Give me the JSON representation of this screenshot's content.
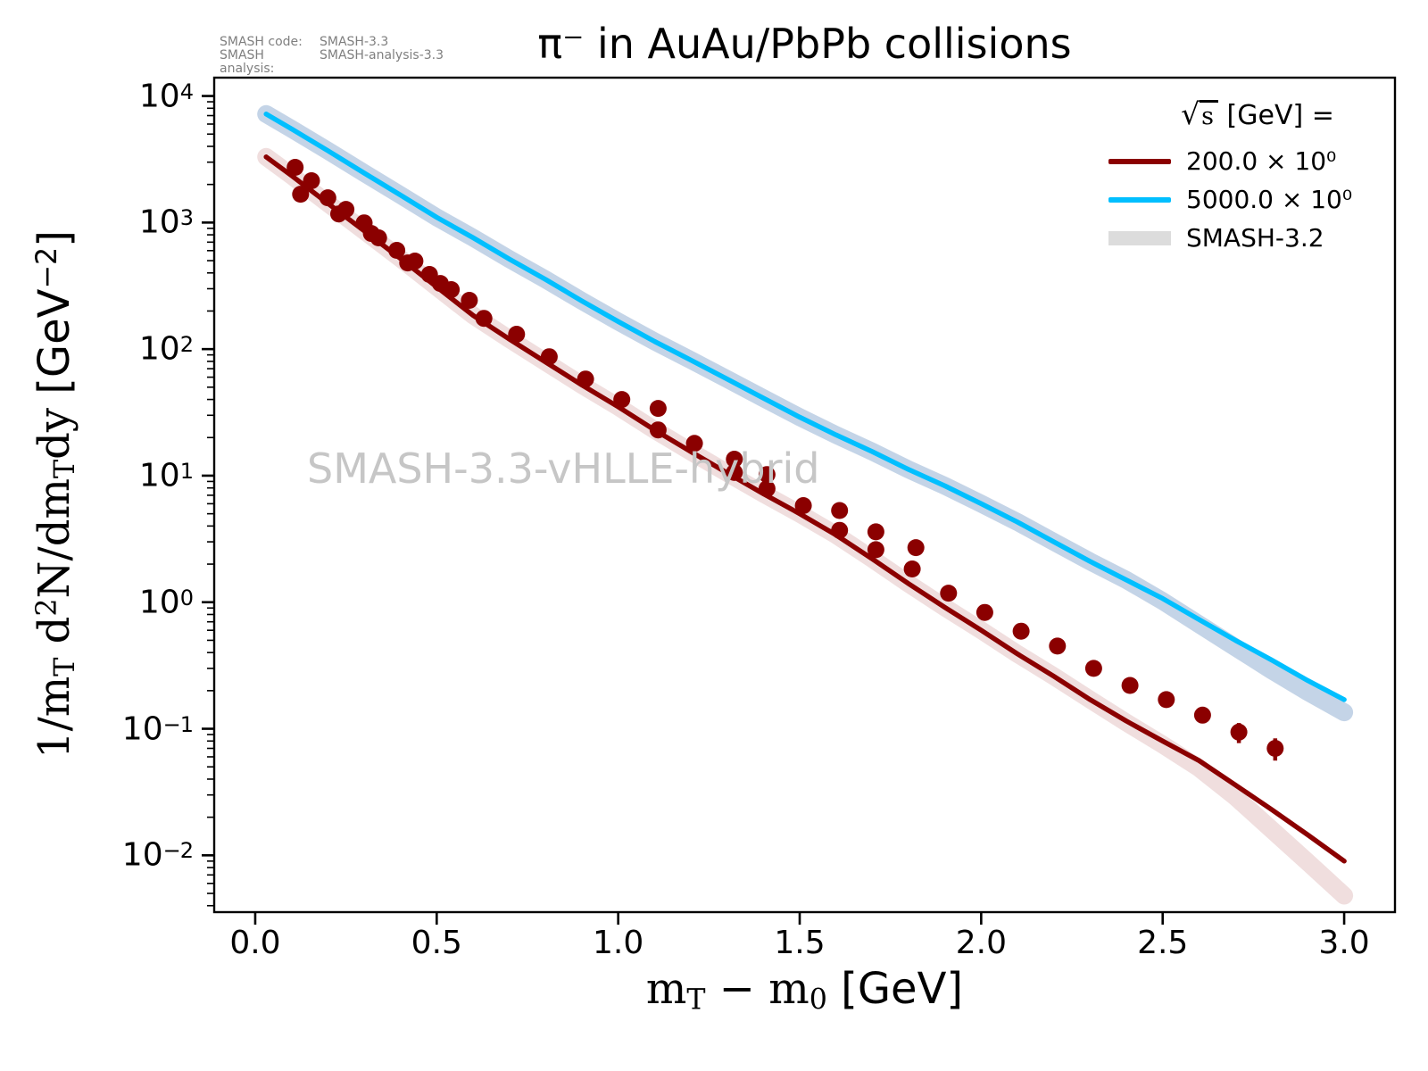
{
  "meta": {
    "line1": {
      "label": "SMASH code:",
      "value": "SMASH-3.3"
    },
    "line2": {
      "label": "SMASH analysis:",
      "value": "SMASH-analysis-3.3"
    }
  },
  "title": "π⁻ in AuAu/PbPb collisions",
  "watermark": "SMASH-3.3-vHLLE-hybrid",
  "legend": {
    "title": {
      "sqrt": "√",
      "arg": "s",
      "rest": " [GeV] ="
    },
    "entries": [
      {
        "label": "200.0 × 10⁰",
        "color": "#8b0000",
        "kind": "line"
      },
      {
        "label": "5000.0 × 10⁰",
        "color": "#00bfff",
        "kind": "line"
      },
      {
        "label": "SMASH-3.2",
        "color": "#dcdcdc",
        "kind": "band"
      }
    ]
  },
  "axes": {
    "xlabel_segments": [
      {
        "t": "m",
        "f": "serif"
      },
      {
        "t": "T",
        "f": "serifsub"
      },
      {
        "t": " − m",
        "f": "serif"
      },
      {
        "t": "0",
        "f": "serifsub"
      },
      {
        "t": " [GeV]",
        "f": "sans"
      }
    ],
    "ylabel_segments": [
      {
        "t": "1/m",
        "f": "serif"
      },
      {
        "t": "T",
        "f": "serifsub"
      },
      {
        "t": " d",
        "f": "serif"
      },
      {
        "t": "2",
        "f": "serifsup"
      },
      {
        "t": "N/dm",
        "f": "serif"
      },
      {
        "t": "T",
        "f": "serifsub"
      },
      {
        "t": "dy ",
        "f": "serif"
      },
      {
        "t": "[GeV",
        "f": "sans"
      },
      {
        "t": "−2",
        "f": "sanssup"
      },
      {
        "t": "]",
        "f": "sans"
      }
    ],
    "xticks": [
      {
        "v": 0.0,
        "label": "0.0"
      },
      {
        "v": 0.5,
        "label": "0.5"
      },
      {
        "v": 1.0,
        "label": "1.0"
      },
      {
        "v": 1.5,
        "label": "1.5"
      },
      {
        "v": 2.0,
        "label": "2.0"
      },
      {
        "v": 2.5,
        "label": "2.5"
      },
      {
        "v": 3.0,
        "label": "3.0"
      }
    ],
    "yticks": [
      {
        "e": 4,
        "exp": "4"
      },
      {
        "e": 3,
        "exp": "3"
      },
      {
        "e": 2,
        "exp": "2"
      },
      {
        "e": 1,
        "exp": "1"
      },
      {
        "e": 0,
        "exp": "0"
      },
      {
        "e": -1,
        "exp": "−1"
      },
      {
        "e": -2,
        "exp": "−2"
      }
    ]
  },
  "chart_data": {
    "type": "line",
    "title": "π− in AuAu/PbPb collisions",
    "xlabel": "mT − m0 [GeV]",
    "ylabel": "1/mT d2N/dmTdy [GeV−2]",
    "yscale": "log",
    "xlim": [
      -0.113,
      3.14
    ],
    "ylim_exp": [
      4.145,
      -2.449
    ],
    "legend_position": "upper right",
    "grid": false,
    "series": [
      {
        "name": "SMASH-3.2 band, sqrt(s)=5000 GeV",
        "kind": "band",
        "color": "rgba(70,120,180,0.32)",
        "width": 20,
        "x": [
          0.03,
          0.1,
          0.2,
          0.3,
          0.4,
          0.5,
          0.6,
          0.7,
          0.8,
          0.9,
          1.0,
          1.1,
          1.2,
          1.3,
          1.4,
          1.5,
          1.6,
          1.7,
          1.8,
          1.9,
          2.0,
          2.1,
          2.2,
          2.3,
          2.4,
          2.5,
          2.6,
          2.7,
          2.8,
          2.9,
          3.0
        ],
        "y": [
          7200,
          5500,
          3700,
          2460,
          1650,
          1100,
          760,
          515,
          355,
          240,
          165,
          115,
          82,
          58,
          41,
          29,
          21,
          15.5,
          11.2,
          8.3,
          6.0,
          4.3,
          3.0,
          2.1,
          1.5,
          1.02,
          0.67,
          0.44,
          0.29,
          0.195,
          0.135
        ]
      },
      {
        "name": "SMASH-3.2 band, sqrt(s)=200 GeV",
        "kind": "band",
        "color": "rgba(139,0,0,0.13)",
        "width": 20,
        "x": [
          0.03,
          0.1,
          0.2,
          0.3,
          0.4,
          0.5,
          0.6,
          0.7,
          0.8,
          0.9,
          1.0,
          1.1,
          1.2,
          1.3,
          1.4,
          1.5,
          1.6,
          1.7,
          1.8,
          1.9,
          2.0,
          2.1,
          2.2,
          2.3,
          2.4,
          2.5,
          2.6,
          2.7,
          2.8,
          2.9,
          3.0
        ],
        "y": [
          3300,
          2350,
          1420,
          860,
          520,
          310,
          185,
          120,
          79,
          52,
          35,
          23,
          15.5,
          10.5,
          7.2,
          5.0,
          3.4,
          2.2,
          1.4,
          0.91,
          0.6,
          0.39,
          0.26,
          0.17,
          0.112,
          0.075,
          0.049,
          0.029,
          0.016,
          0.0088,
          0.0048
        ]
      },
      {
        "name": "SMASH-3.3, sqrt(s)=5000 GeV",
        "kind": "line",
        "color": "#00bfff",
        "width": 5.5,
        "x": [
          0.03,
          0.1,
          0.2,
          0.3,
          0.4,
          0.5,
          0.6,
          0.7,
          0.8,
          0.9,
          1.0,
          1.1,
          1.2,
          1.3,
          1.4,
          1.5,
          1.6,
          1.7,
          1.8,
          1.9,
          2.0,
          2.1,
          2.2,
          2.3,
          2.4,
          2.5,
          2.6,
          2.7,
          2.8,
          2.9,
          3.0
        ],
        "y": [
          7200,
          5500,
          3700,
          2460,
          1650,
          1100,
          760,
          515,
          355,
          240,
          165,
          115,
          82,
          58,
          41,
          29,
          21,
          15.5,
          11.2,
          8.3,
          6.0,
          4.3,
          3.0,
          2.1,
          1.5,
          1.07,
          0.73,
          0.5,
          0.35,
          0.24,
          0.17
        ]
      },
      {
        "name": "SMASH-3.3, sqrt(s)=200 GeV",
        "kind": "line",
        "color": "#8b0000",
        "width": 5.5,
        "x": [
          0.03,
          0.1,
          0.2,
          0.3,
          0.4,
          0.5,
          0.6,
          0.7,
          0.8,
          0.9,
          1.0,
          1.1,
          1.2,
          1.3,
          1.4,
          1.5,
          1.6,
          1.7,
          1.8,
          1.9,
          2.0,
          2.1,
          2.2,
          2.3,
          2.4,
          2.5,
          2.6,
          2.7,
          2.8,
          2.9,
          3.0
        ],
        "y": [
          3300,
          2350,
          1420,
          860,
          520,
          310,
          185,
          120,
          79,
          52,
          35,
          23,
          15.5,
          10.5,
          7.2,
          5.0,
          3.4,
          2.2,
          1.4,
          0.91,
          0.6,
          0.39,
          0.26,
          0.17,
          0.115,
          0.08,
          0.056,
          0.036,
          0.023,
          0.0145,
          0.009
        ]
      },
      {
        "name": "experimental data points, 200 GeV",
        "kind": "scatter",
        "color": "#8b0000",
        "marker_radius": 9.5,
        "x": [
          0.11,
          0.125,
          0.155,
          0.2,
          0.23,
          0.25,
          0.3,
          0.32,
          0.34,
          0.39,
          0.42,
          0.44,
          0.48,
          0.51,
          0.54,
          0.59,
          0.63,
          0.72,
          0.81,
          0.91,
          1.01,
          1.11,
          1.11,
          1.21,
          1.32,
          1.32,
          1.41,
          1.41,
          1.51,
          1.61,
          1.61,
          1.71,
          1.71,
          1.81,
          1.82,
          1.91,
          2.01,
          2.11,
          2.21,
          2.31,
          2.41,
          2.51,
          2.61,
          2.71,
          2.81
        ],
        "y": [
          2730,
          1675,
          2140,
          1570,
          1170,
          1270,
          995,
          820,
          757,
          603,
          480,
          496,
          389,
          330,
          295,
          243,
          175,
          131,
          87,
          58,
          40,
          34,
          23,
          18,
          13.5,
          10.6,
          10.2,
          7.9,
          5.8,
          5.3,
          3.7,
          3.6,
          2.6,
          1.83,
          2.7,
          1.18,
          0.83,
          0.59,
          0.45,
          0.3,
          0.22,
          0.17,
          0.128,
          0.094,
          0.07
        ],
        "yerr": [
          0,
          0,
          0,
          0,
          0,
          0,
          0,
          0,
          0,
          0,
          0,
          0,
          0,
          0,
          0,
          0,
          0,
          0,
          0,
          0,
          0,
          0,
          0,
          0,
          0,
          0,
          0,
          0,
          0,
          0,
          0,
          0,
          0,
          0,
          0,
          0,
          0,
          0,
          0,
          0,
          0,
          0,
          0,
          0.017,
          0.014
        ]
      }
    ]
  }
}
